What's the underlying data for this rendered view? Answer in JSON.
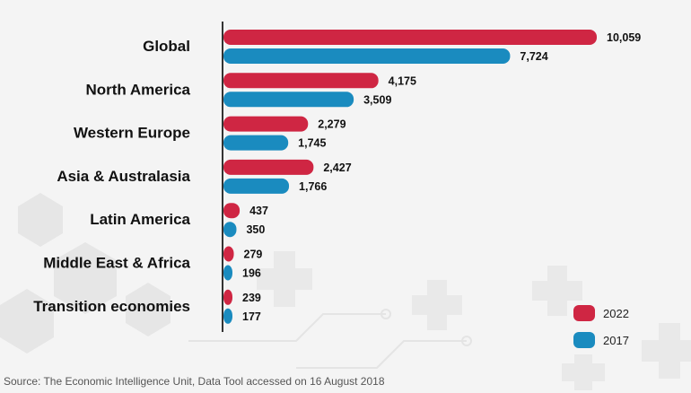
{
  "chart_data": {
    "type": "bar",
    "orientation": "horizontal",
    "categories": [
      "Global",
      "North America",
      "Western Europe",
      "Asia & Australasia",
      "Latin America",
      "Middle East & Africa",
      "Transition economies"
    ],
    "series": [
      {
        "name": "2022",
        "values": [
          10059,
          4175,
          2279,
          2427,
          437,
          279,
          239
        ],
        "labels": [
          "10,059",
          "4,175",
          "2,279",
          "2,427",
          "437",
          "279",
          "239"
        ],
        "color": "#cf2643"
      },
      {
        "name": "2017",
        "values": [
          7724,
          3509,
          1745,
          1766,
          350,
          196,
          177
        ],
        "labels": [
          "7,724",
          "3,509",
          "1,745",
          "1,766",
          "350",
          "196",
          "177"
        ],
        "color": "#1a8bbf"
      }
    ],
    "xlim": [
      0,
      10059
    ],
    "grid": false,
    "legend_position": "bottom-right"
  },
  "colors": {
    "axis": "#333333",
    "background": "#f4f4f4",
    "decoration": "#e3e3e3"
  },
  "footer": {
    "source": "Source: The Economic Intelligence Unit, Data Tool accessed on 16 August 2018"
  }
}
